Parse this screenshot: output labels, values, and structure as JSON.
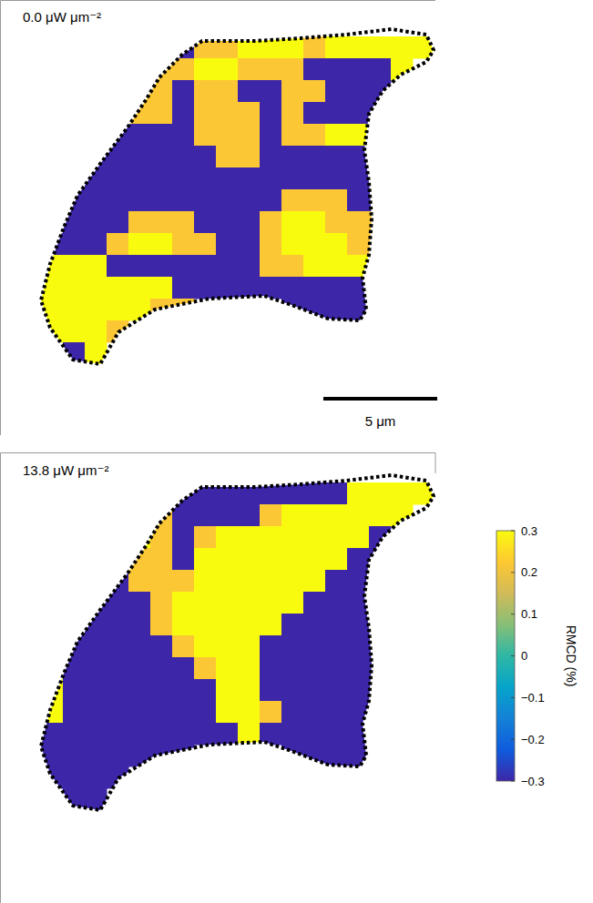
{
  "chart_data": [
    {
      "type": "heatmap",
      "title": "0.0 μW μm⁻²",
      "scale_bar": {
        "length": 5,
        "label": "5 μm"
      },
      "cells": [
        [
          null,
          null,
          null,
          null,
          null,
          null,
          -0.3,
          0.22,
          0.22,
          0.3,
          0.3,
          0.3,
          0.22,
          0.3,
          0.3,
          0.3,
          0.3,
          0.3
        ],
        [
          null,
          null,
          null,
          null,
          null,
          0.22,
          0.22,
          0.3,
          0.3,
          0.22,
          0.22,
          0.22,
          -0.3,
          -0.3,
          -0.3,
          -0.3,
          0.3,
          null
        ],
        [
          null,
          null,
          null,
          null,
          0.22,
          0.22,
          -0.3,
          0.22,
          0.22,
          -0.3,
          -0.3,
          0.22,
          0.22,
          -0.3,
          -0.3,
          -0.3,
          null,
          null
        ],
        [
          null,
          null,
          null,
          null,
          0.22,
          0.22,
          -0.3,
          0.22,
          0.22,
          0.22,
          -0.3,
          0.22,
          -0.3,
          -0.3,
          -0.3,
          -0.3,
          null,
          null
        ],
        [
          null,
          null,
          null,
          -0.3,
          -0.3,
          -0.3,
          -0.3,
          0.22,
          0.22,
          0.22,
          -0.3,
          0.22,
          0.22,
          0.3,
          0.3,
          null,
          null,
          null
        ],
        [
          null,
          null,
          -0.3,
          -0.3,
          -0.3,
          -0.3,
          -0.3,
          -0.3,
          0.22,
          0.22,
          -0.3,
          -0.3,
          -0.3,
          -0.3,
          -0.3,
          null,
          null,
          null
        ],
        [
          null,
          null,
          -0.3,
          -0.3,
          -0.3,
          -0.3,
          -0.3,
          -0.3,
          -0.3,
          -0.3,
          -0.3,
          -0.3,
          -0.3,
          -0.3,
          -0.3,
          -0.3,
          null,
          null
        ],
        [
          null,
          -0.3,
          -0.3,
          -0.3,
          -0.3,
          -0.3,
          -0.3,
          -0.3,
          -0.3,
          -0.3,
          -0.3,
          0.22,
          0.22,
          0.22,
          -0.3,
          -0.3,
          null,
          null
        ],
        [
          null,
          -0.3,
          -0.3,
          -0.3,
          0.22,
          0.22,
          0.22,
          -0.3,
          -0.3,
          -0.3,
          0.22,
          0.3,
          0.3,
          0.22,
          0.22,
          0.22,
          null,
          null
        ],
        [
          -0.3,
          -0.3,
          -0.3,
          0.22,
          0.3,
          0.3,
          0.22,
          0.22,
          -0.3,
          -0.3,
          0.22,
          0.3,
          0.3,
          0.3,
          0.22,
          0.22,
          null,
          null
        ],
        [
          0.3,
          0.3,
          0.3,
          -0.3,
          -0.3,
          -0.3,
          -0.3,
          -0.3,
          -0.3,
          -0.3,
          0.22,
          0.22,
          0.3,
          0.3,
          0.3,
          0.3,
          null,
          null
        ],
        [
          0.3,
          0.3,
          0.3,
          0.3,
          0.3,
          0.3,
          -0.3,
          -0.3,
          -0.3,
          -0.3,
          -0.3,
          -0.3,
          -0.3,
          -0.3,
          -0.3,
          -0.3,
          null,
          null
        ],
        [
          0.3,
          0.3,
          0.3,
          0.3,
          0.3,
          0.22,
          0.22,
          null,
          null,
          null,
          null,
          -0.3,
          -0.3,
          -0.3,
          -0.3,
          -0.3,
          null,
          null
        ],
        [
          0.3,
          0.3,
          0.3,
          0.22,
          null,
          null,
          null,
          null,
          null,
          null,
          null,
          null,
          null,
          null,
          null,
          null,
          null,
          null
        ],
        [
          null,
          -0.3,
          0.3,
          null,
          null,
          null,
          null,
          null,
          null,
          null,
          null,
          null,
          null,
          null,
          null,
          null,
          null,
          null
        ]
      ]
    },
    {
      "type": "heatmap",
      "title": "13.8 μW μm⁻²",
      "colorbar": {
        "label": "RMCD (%)",
        "range": [
          -0.3,
          0.3
        ],
        "ticks": [
          {
            "value": -0.3,
            "label": "−0.3"
          },
          {
            "value": -0.2,
            "label": "−0.2"
          },
          {
            "value": -0.1,
            "label": "−0.1"
          },
          0,
          0.1,
          0.2,
          0.3
        ]
      },
      "cells": [
        [
          null,
          null,
          null,
          null,
          null,
          null,
          -0.3,
          -0.3,
          -0.3,
          -0.3,
          -0.3,
          -0.3,
          -0.3,
          -0.3,
          0.3,
          0.3,
          0.3,
          0.3
        ],
        [
          null,
          null,
          null,
          null,
          null,
          0.22,
          -0.3,
          -0.3,
          -0.3,
          -0.3,
          0.22,
          0.3,
          0.3,
          0.3,
          0.3,
          0.3,
          0.3,
          null
        ],
        [
          null,
          null,
          null,
          null,
          0.3,
          0.22,
          -0.3,
          0.22,
          0.3,
          0.3,
          0.3,
          0.3,
          0.3,
          0.3,
          0.3,
          -0.3,
          null,
          null
        ],
        [
          null,
          null,
          null,
          null,
          0.22,
          0.22,
          -0.3,
          0.3,
          0.3,
          0.3,
          0.3,
          0.3,
          0.3,
          0.3,
          -0.3,
          -0.3,
          null,
          null
        ],
        [
          null,
          null,
          null,
          -0.3,
          0.22,
          0.22,
          0.22,
          0.3,
          0.3,
          0.3,
          0.3,
          0.3,
          0.3,
          -0.3,
          -0.3,
          null,
          null,
          null
        ],
        [
          null,
          null,
          -0.3,
          -0.3,
          -0.3,
          0.22,
          0.3,
          0.3,
          0.3,
          0.3,
          0.3,
          0.3,
          -0.3,
          -0.3,
          -0.3,
          null,
          null,
          null
        ],
        [
          null,
          null,
          -0.3,
          -0.3,
          -0.3,
          0.22,
          0.3,
          0.3,
          0.3,
          0.3,
          0.3,
          -0.3,
          -0.3,
          -0.3,
          -0.3,
          -0.3,
          null,
          null
        ],
        [
          null,
          -0.3,
          -0.3,
          -0.3,
          -0.3,
          -0.3,
          0.22,
          0.3,
          0.3,
          0.3,
          -0.3,
          -0.3,
          -0.3,
          -0.3,
          -0.3,
          -0.3,
          null,
          null
        ],
        [
          null,
          -0.3,
          -0.3,
          -0.3,
          -0.3,
          -0.3,
          -0.3,
          0.22,
          0.3,
          0.3,
          -0.3,
          -0.3,
          -0.3,
          -0.3,
          -0.3,
          -0.3,
          null,
          null
        ],
        [
          0.3,
          -0.3,
          -0.3,
          -0.3,
          -0.3,
          -0.3,
          -0.3,
          -0.3,
          0.3,
          0.3,
          -0.3,
          -0.3,
          -0.3,
          -0.3,
          -0.3,
          -0.3,
          null,
          null
        ],
        [
          0.3,
          -0.3,
          -0.3,
          -0.3,
          -0.3,
          -0.3,
          -0.3,
          -0.3,
          0.3,
          0.3,
          0.22,
          -0.3,
          -0.3,
          -0.3,
          -0.3,
          -0.3,
          null,
          null
        ],
        [
          -0.3,
          -0.3,
          -0.3,
          -0.3,
          -0.3,
          -0.3,
          -0.3,
          -0.3,
          -0.3,
          0.3,
          -0.3,
          -0.3,
          -0.3,
          -0.3,
          -0.3,
          -0.3,
          null,
          null
        ],
        [
          -0.3,
          -0.3,
          -0.3,
          -0.3,
          -0.3,
          -0.3,
          -0.3,
          null,
          null,
          null,
          null,
          -0.3,
          -0.3,
          -0.3,
          -0.3,
          -0.3,
          null,
          null
        ],
        [
          -0.3,
          -0.3,
          -0.3,
          -0.3,
          null,
          null,
          null,
          null,
          null,
          null,
          null,
          null,
          null,
          null,
          null,
          null,
          null,
          null
        ],
        [
          null,
          -0.3,
          -0.3,
          null,
          null,
          null,
          null,
          null,
          null,
          null,
          null,
          null,
          null,
          null,
          null,
          null,
          null,
          null
        ]
      ]
    }
  ]
}
